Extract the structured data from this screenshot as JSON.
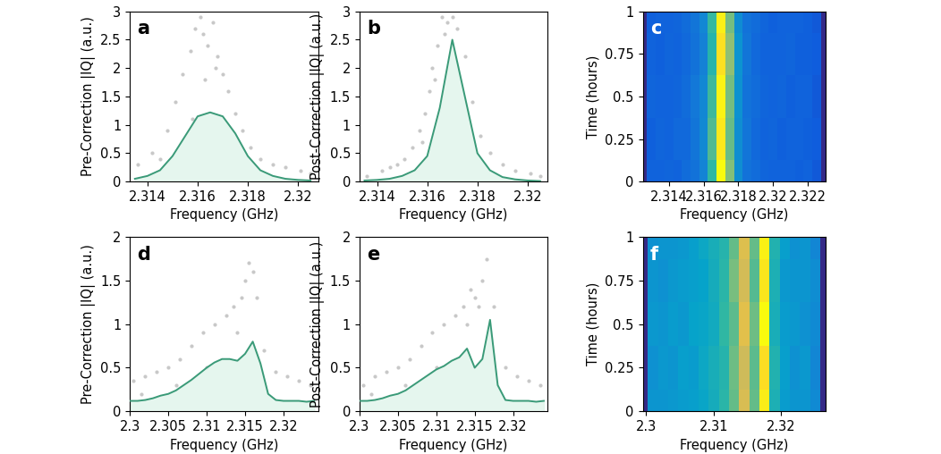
{
  "chart_data": [
    {
      "type": "line",
      "panel": "a",
      "x_label": "Frequency (GHz)",
      "y_label": "Pre-Correction |IQ| (a.u.)",
      "xlim": [
        2.3133,
        2.3208
      ],
      "ylim": [
        0,
        3
      ],
      "xticks": [
        2.314,
        2.316,
        2.318,
        2.32
      ],
      "yticks": [
        0,
        0.5,
        1,
        1.5,
        2,
        2.5,
        3
      ],
      "color": "#3a9a78",
      "x": [
        2.3135,
        2.314,
        2.3145,
        2.315,
        2.3155,
        2.316,
        2.3165,
        2.317,
        2.3175,
        2.318,
        2.3185,
        2.319,
        2.3195,
        2.32,
        2.3205
      ],
      "values": [
        0.05,
        0.1,
        0.2,
        0.45,
        0.8,
        1.15,
        1.22,
        1.15,
        0.85,
        0.45,
        0.2,
        0.1,
        0.05,
        0.03,
        0.02
      ],
      "points": {
        "x": [
          2.3136,
          2.3142,
          2.3148,
          2.3151,
          2.3154,
          2.3157,
          2.3159,
          2.3161,
          2.3162,
          2.3164,
          2.3166,
          2.3168,
          2.317,
          2.3172,
          2.3175,
          2.3178,
          2.3181,
          2.3185,
          2.319,
          2.3195,
          2.3201,
          2.3205,
          2.3145,
          2.3158,
          2.3163,
          2.3167
        ],
        "y": [
          0.3,
          0.5,
          0.9,
          1.4,
          1.9,
          2.3,
          2.7,
          2.9,
          2.6,
          2.4,
          2.8,
          2.2,
          1.9,
          1.6,
          1.2,
          0.9,
          0.6,
          0.4,
          0.3,
          0.25,
          0.2,
          0.15,
          0.4,
          1.1,
          1.8,
          2.0
        ]
      }
    },
    {
      "type": "line",
      "panel": "b",
      "x_label": "Frequency (GHz)",
      "y_label": "Post-Correction |IQ| (a.u.)",
      "xlim": [
        2.3133,
        2.3208
      ],
      "ylim": [
        0,
        3
      ],
      "xticks": [
        2.314,
        2.316,
        2.318,
        2.32
      ],
      "yticks": [
        0,
        0.5,
        1,
        1.5,
        2,
        2.5,
        3
      ],
      "color": "#3a9a78",
      "x": [
        2.3135,
        2.314,
        2.3145,
        2.315,
        2.3155,
        2.316,
        2.3165,
        2.317,
        2.3175,
        2.318,
        2.3185,
        2.319,
        2.3195,
        2.32,
        2.3205
      ],
      "values": [
        0.02,
        0.03,
        0.05,
        0.1,
        0.2,
        0.45,
        1.3,
        2.5,
        1.5,
        0.5,
        0.2,
        0.08,
        0.04,
        0.02,
        0.01
      ],
      "points": {
        "x": [
          2.3136,
          2.3142,
          2.3148,
          2.3151,
          2.3154,
          2.3157,
          2.3159,
          2.3161,
          2.3162,
          2.3164,
          2.3166,
          2.3168,
          2.317,
          2.3172,
          2.3175,
          2.3178,
          2.3181,
          2.3185,
          2.319,
          2.3195,
          2.3201,
          2.3205,
          2.3145,
          2.3158,
          2.3163,
          2.3167
        ],
        "y": [
          0.1,
          0.2,
          0.3,
          0.4,
          0.6,
          0.9,
          1.2,
          1.6,
          2.0,
          2.4,
          2.9,
          2.8,
          2.9,
          2.7,
          2.2,
          1.4,
          0.8,
          0.5,
          0.3,
          0.2,
          0.15,
          0.1,
          0.25,
          0.7,
          1.8,
          2.6
        ]
      }
    },
    {
      "type": "heatmap",
      "panel": "c",
      "x_label": "Frequency (GHz)",
      "y_label": "Time (hours)",
      "xlim": [
        2.3125,
        2.323
      ],
      "ylim": [
        0,
        1
      ],
      "xticks": [
        2.314,
        2.316,
        2.318,
        2.32,
        2.322
      ],
      "yticks": [
        0,
        0.25,
        0.5,
        0.75,
        1
      ],
      "x": [
        2.3125,
        2.313,
        2.3135,
        2.314,
        2.3145,
        2.315,
        2.3155,
        2.316,
        2.3165,
        2.317,
        2.3175,
        2.318,
        2.3185,
        2.319,
        2.3195,
        2.32,
        2.3205,
        2.321,
        2.3215,
        2.322,
        2.3225,
        2.323
      ],
      "y": [
        0,
        0.25,
        0.5,
        0.75,
        1
      ],
      "cells": [
        [
          0,
          0.15,
          0.15,
          0.16,
          0.15,
          0.18,
          0.2,
          0.26,
          0.5,
          1.0,
          0.62,
          0.3,
          0.2,
          0.18,
          0.16,
          0.15,
          0.15,
          0.15,
          0.14,
          0.15,
          0.12,
          0
        ],
        [
          0,
          0.14,
          0.16,
          0.15,
          0.17,
          0.17,
          0.21,
          0.28,
          0.55,
          0.95,
          0.58,
          0.3,
          0.21,
          0.17,
          0.15,
          0.16,
          0.14,
          0.15,
          0.15,
          0.14,
          0.13,
          0
        ],
        [
          0,
          0.16,
          0.15,
          0.15,
          0.16,
          0.18,
          0.22,
          0.27,
          0.52,
          0.98,
          0.6,
          0.31,
          0.2,
          0.18,
          0.16,
          0.15,
          0.16,
          0.14,
          0.15,
          0.15,
          0.12,
          0
        ],
        [
          0,
          0.15,
          0.14,
          0.16,
          0.15,
          0.17,
          0.2,
          0.25,
          0.48,
          0.93,
          0.64,
          0.32,
          0.21,
          0.17,
          0.15,
          0.15,
          0.15,
          0.16,
          0.14,
          0.14,
          0.13,
          0
        ],
        [
          0,
          0.14,
          0.15,
          0.15,
          0.16,
          0.18,
          0.21,
          0.27,
          0.51,
          0.97,
          0.6,
          0.29,
          0.2,
          0.18,
          0.16,
          0.14,
          0.15,
          0.15,
          0.15,
          0.14,
          0.12,
          0
        ]
      ]
    },
    {
      "type": "line",
      "panel": "d",
      "x_label": "Frequency (GHz)",
      "y_label": "Pre-Correction |IQ| (a.u.)",
      "xlim": [
        2.3,
        2.3245
      ],
      "ylim": [
        0,
        2
      ],
      "xticks": [
        2.3,
        2.305,
        2.31,
        2.315,
        2.32
      ],
      "yticks": [
        0,
        0.5,
        1,
        1.5,
        2
      ],
      "color": "#3a9a78",
      "x": [
        2.3,
        2.301,
        2.302,
        2.303,
        2.304,
        2.305,
        2.306,
        2.307,
        2.308,
        2.309,
        2.31,
        2.311,
        2.312,
        2.313,
        2.314,
        2.315,
        2.316,
        2.317,
        2.318,
        2.319,
        2.32,
        2.321,
        2.322,
        2.323,
        2.324
      ],
      "values": [
        0.12,
        0.12,
        0.13,
        0.15,
        0.18,
        0.2,
        0.24,
        0.3,
        0.36,
        0.43,
        0.5,
        0.56,
        0.6,
        0.6,
        0.58,
        0.66,
        0.8,
        0.55,
        0.2,
        0.13,
        0.12,
        0.12,
        0.12,
        0.11,
        0.12
      ],
      "points": {
        "x": [
          2.3005,
          2.302,
          2.3035,
          2.305,
          2.3065,
          2.308,
          2.3095,
          2.311,
          2.3125,
          2.3135,
          2.3145,
          2.315,
          2.3155,
          2.316,
          2.3165,
          2.3175,
          2.319,
          2.3205,
          2.322,
          2.3235,
          2.3015,
          2.306,
          2.31,
          2.314
        ],
        "y": [
          0.35,
          0.4,
          0.45,
          0.5,
          0.6,
          0.75,
          0.9,
          1.0,
          1.1,
          1.2,
          1.3,
          1.5,
          1.7,
          1.6,
          1.3,
          0.7,
          0.45,
          0.4,
          0.35,
          0.3,
          0.2,
          0.3,
          0.5,
          0.9
        ]
      }
    },
    {
      "type": "line",
      "panel": "e",
      "x_label": "Frequency (GHz)",
      "y_label": "Post-Correction |IQ| (a.u.)",
      "xlim": [
        2.3,
        2.3245
      ],
      "ylim": [
        0,
        2
      ],
      "xticks": [
        2.3,
        2.305,
        2.31,
        2.315,
        2.32
      ],
      "yticks": [
        0,
        0.5,
        1,
        1.5,
        2
      ],
      "color": "#3a9a78",
      "x": [
        2.3,
        2.301,
        2.302,
        2.303,
        2.304,
        2.305,
        2.306,
        2.307,
        2.308,
        2.309,
        2.31,
        2.311,
        2.312,
        2.313,
        2.314,
        2.315,
        2.316,
        2.317,
        2.318,
        2.319,
        2.32,
        2.321,
        2.322,
        2.323,
        2.324
      ],
      "values": [
        0.12,
        0.12,
        0.13,
        0.15,
        0.18,
        0.2,
        0.24,
        0.3,
        0.36,
        0.42,
        0.48,
        0.52,
        0.58,
        0.62,
        0.72,
        0.5,
        0.6,
        1.05,
        0.3,
        0.13,
        0.12,
        0.12,
        0.12,
        0.11,
        0.12
      ],
      "points": {
        "x": [
          2.3005,
          2.302,
          2.3035,
          2.305,
          2.3065,
          2.308,
          2.3095,
          2.311,
          2.3125,
          2.3135,
          2.3145,
          2.315,
          2.3155,
          2.316,
          2.3165,
          2.3175,
          2.319,
          2.3205,
          2.322,
          2.3235,
          2.3015,
          2.306,
          2.31,
          2.314
        ],
        "y": [
          0.3,
          0.4,
          0.45,
          0.5,
          0.6,
          0.75,
          0.9,
          1.0,
          1.1,
          1.2,
          1.4,
          1.3,
          1.2,
          1.5,
          1.75,
          1.2,
          0.5,
          0.4,
          0.35,
          0.3,
          0.2,
          0.3,
          0.5,
          1.0
        ]
      }
    },
    {
      "type": "heatmap",
      "panel": "f",
      "x_label": "Frequency (GHz)",
      "y_label": "Time (hours)",
      "xlim": [
        2.2995,
        2.3265
      ],
      "ylim": [
        0,
        1
      ],
      "xticks": [
        2.3,
        2.31,
        2.32
      ],
      "yticks": [
        0,
        0.25,
        0.5,
        0.75,
        1
      ],
      "x": [
        2.2995,
        2.301,
        2.3025,
        2.304,
        2.3055,
        2.307,
        2.3085,
        2.31,
        2.3115,
        2.313,
        2.3145,
        2.316,
        2.3175,
        2.319,
        2.3205,
        2.322,
        2.3235,
        2.325,
        2.3265
      ],
      "y": [
        0,
        0.25,
        0.5,
        0.75,
        1
      ],
      "cells": [
        [
          0,
          0.25,
          0.25,
          0.26,
          0.27,
          0.28,
          0.3,
          0.33,
          0.38,
          0.45,
          0.6,
          0.45,
          0.75,
          0.35,
          0.27,
          0.25,
          0.25,
          0.22,
          0
        ],
        [
          0,
          0.24,
          0.26,
          0.25,
          0.28,
          0.27,
          0.31,
          0.34,
          0.37,
          0.46,
          0.58,
          0.44,
          0.72,
          0.36,
          0.28,
          0.24,
          0.26,
          0.21,
          0
        ],
        [
          0,
          0.26,
          0.25,
          0.27,
          0.26,
          0.29,
          0.3,
          0.32,
          0.39,
          0.44,
          0.62,
          0.46,
          0.78,
          0.34,
          0.27,
          0.26,
          0.24,
          0.22,
          0
        ],
        [
          0,
          0.25,
          0.24,
          0.26,
          0.27,
          0.28,
          0.29,
          0.33,
          0.38,
          0.47,
          0.59,
          0.43,
          0.74,
          0.35,
          0.26,
          0.25,
          0.25,
          0.23,
          0
        ],
        [
          0,
          0.24,
          0.25,
          0.25,
          0.26,
          0.28,
          0.31,
          0.34,
          0.37,
          0.45,
          0.61,
          0.45,
          0.76,
          0.36,
          0.28,
          0.24,
          0.25,
          0.21,
          0
        ]
      ]
    }
  ]
}
